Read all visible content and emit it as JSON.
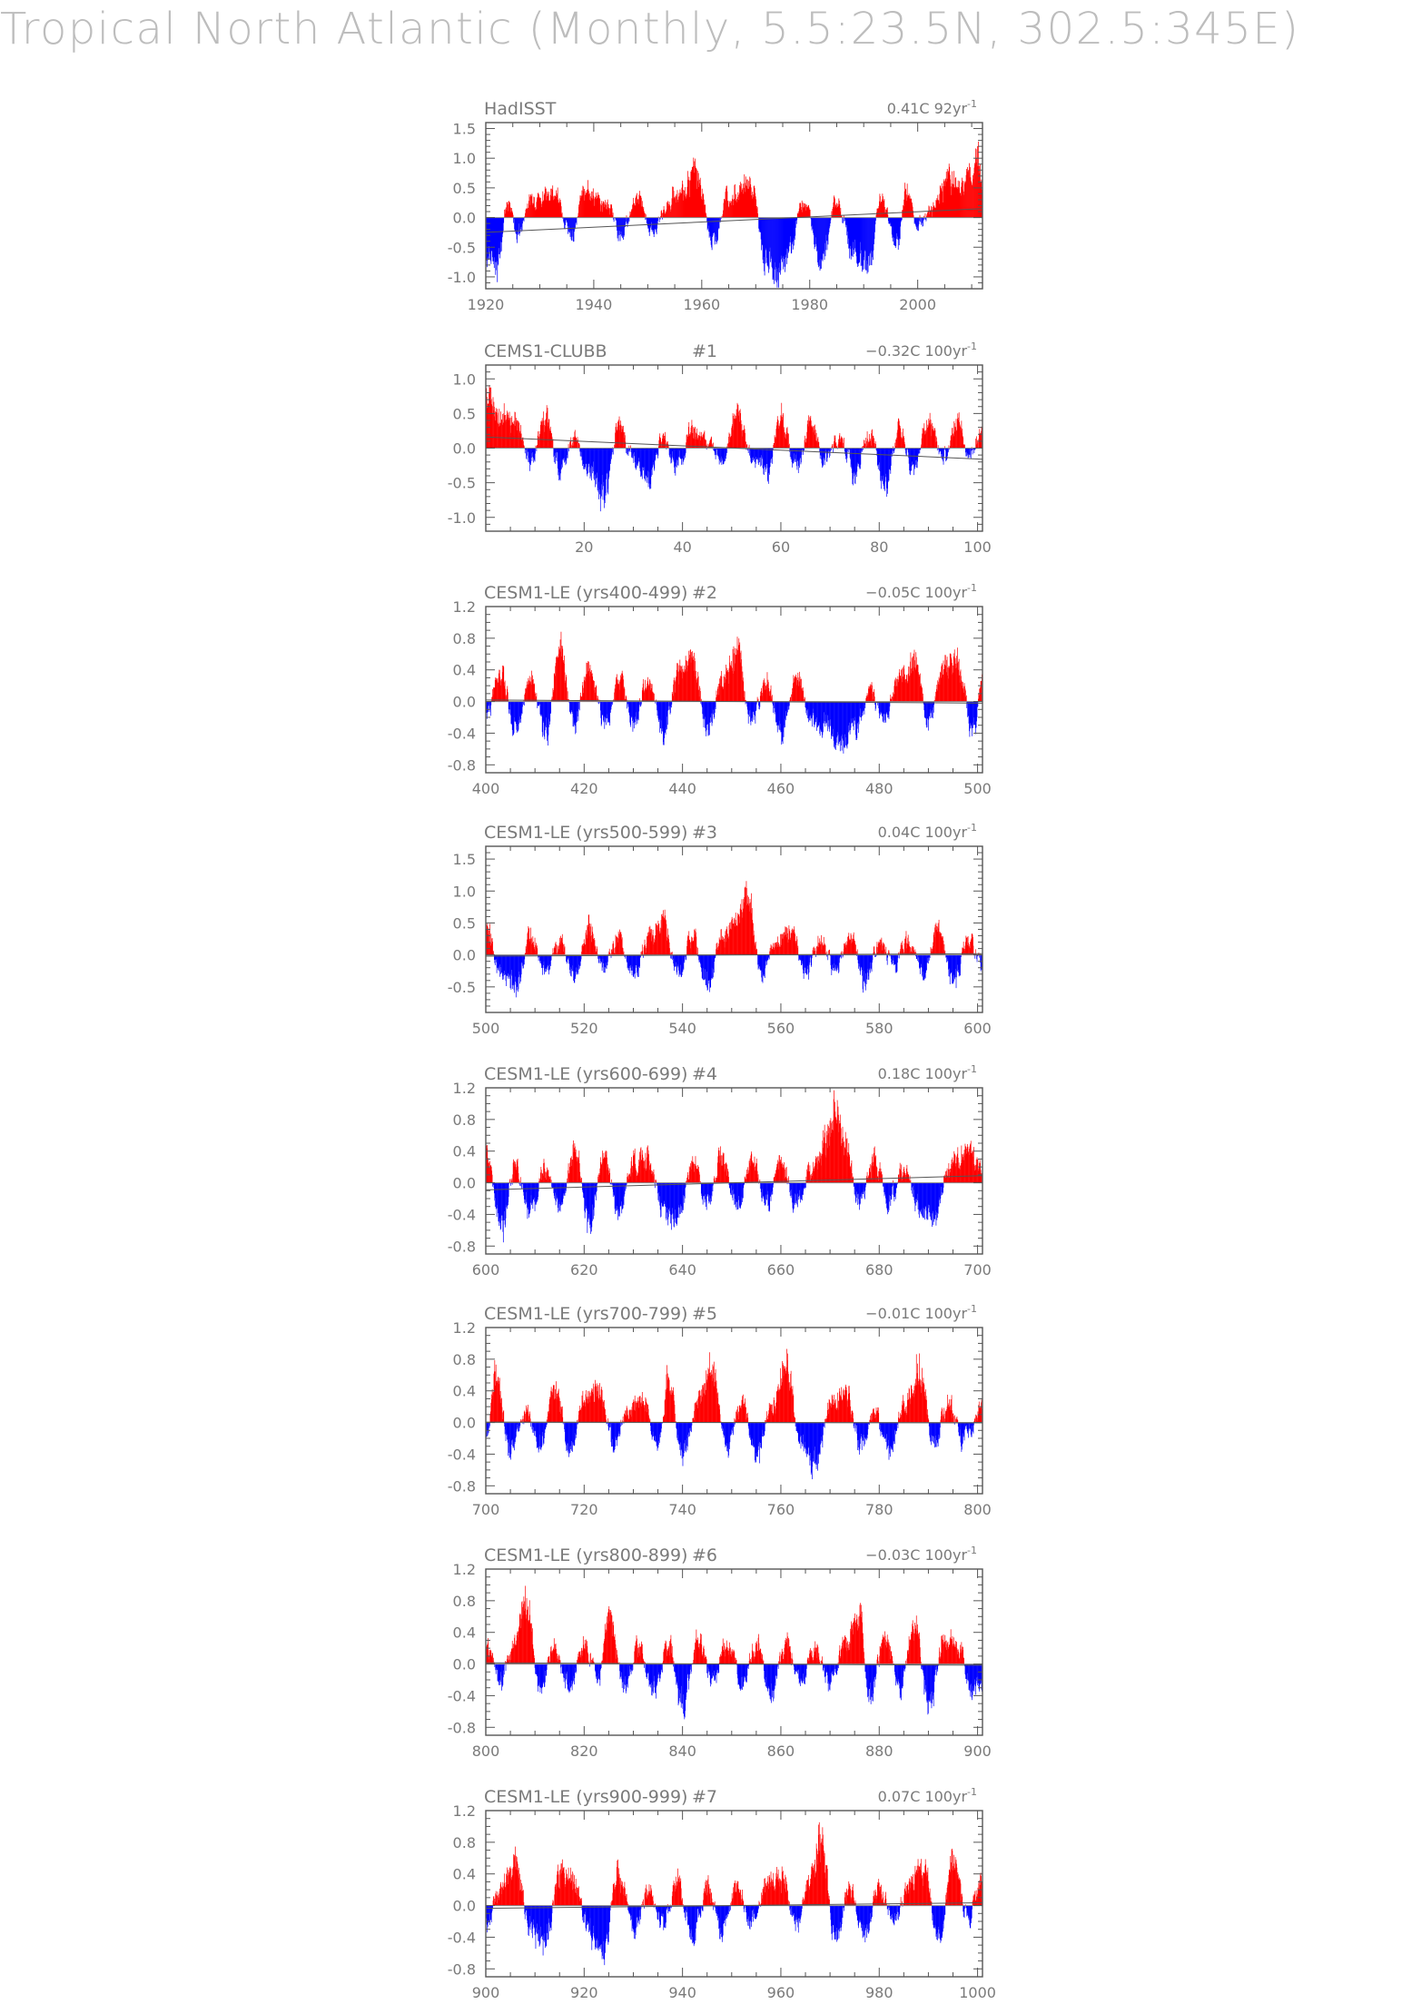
{
  "figure": {
    "title": "Tropical North Atlantic (Monthly, 5.5:23.5N, 302.5:345E)"
  },
  "colors": {
    "positive": "#ff0000",
    "negative": "#0000ff",
    "axis": "#555555",
    "text": "#7a7a7a"
  },
  "chart_data": [
    {
      "type": "bar",
      "title": "HadISST",
      "run": "",
      "trend": "0.41C 92yr",
      "trend_exp": "-1",
      "xlim": [
        1920,
        2012
      ],
      "ylim": [
        -1.2,
        1.6
      ],
      "xticks": [
        1920,
        1940,
        1960,
        1980,
        2000
      ],
      "xminor": 5,
      "yticks": [
        -1.0,
        -0.5,
        0.0,
        0.5,
        1.0,
        1.5
      ],
      "yminor": 0.1,
      "yfmt": 1,
      "trend_start": -0.25,
      "trend_end": 0.15,
      "anchors": [
        [
          0,
          -0.65
        ],
        [
          2,
          -0.85
        ],
        [
          4,
          0.25
        ],
        [
          6,
          -0.3
        ],
        [
          8,
          0.3
        ],
        [
          12,
          0.45
        ],
        [
          16,
          -0.3
        ],
        [
          18,
          0.5
        ],
        [
          22,
          0.3
        ],
        [
          25,
          -0.3
        ],
        [
          28,
          0.35
        ],
        [
          31,
          -0.25
        ],
        [
          35,
          0.35
        ],
        [
          39,
          0.85
        ],
        [
          42,
          -0.5
        ],
        [
          45,
          0.4
        ],
        [
          49,
          0.6
        ],
        [
          52,
          -0.8
        ],
        [
          54,
          -1.0
        ],
        [
          56,
          -0.6
        ],
        [
          59,
          0.3
        ],
        [
          62,
          -0.75
        ],
        [
          65,
          0.3
        ],
        [
          68,
          -0.6
        ],
        [
          71,
          -0.8
        ],
        [
          73,
          0.3
        ],
        [
          76,
          -0.45
        ],
        [
          78,
          0.5
        ],
        [
          80,
          -0.15
        ],
        [
          83,
          0.25
        ],
        [
          86,
          0.7
        ],
        [
          88,
          0.55
        ],
        [
          90,
          0.85
        ],
        [
          91,
          1.2
        ],
        [
          92,
          0.5
        ]
      ],
      "noise": 0.2
    },
    {
      "type": "bar",
      "title": "CEMS1-CLUBB",
      "run": "#1",
      "trend": "−0.32C 100yr",
      "trend_exp": "-1",
      "xlim": [
        0,
        101
      ],
      "ylim": [
        -1.2,
        1.2
      ],
      "xticks": [
        20,
        40,
        60,
        80,
        100
      ],
      "xminor": 5,
      "yticks": [
        -1.0,
        -0.5,
        0.0,
        0.5,
        1.0
      ],
      "yminor": 0.1,
      "yfmt": 1,
      "trend_start": 0.16,
      "trend_end": -0.16,
      "anchors": [
        [
          0,
          0.75
        ],
        [
          3,
          0.5
        ],
        [
          6,
          0.4
        ],
        [
          9,
          -0.2
        ],
        [
          12,
          0.45
        ],
        [
          15,
          -0.3
        ],
        [
          18,
          0.15
        ],
        [
          21,
          -0.35
        ],
        [
          24,
          -0.75
        ],
        [
          27,
          0.35
        ],
        [
          30,
          -0.2
        ],
        [
          33,
          -0.45
        ],
        [
          36,
          0.15
        ],
        [
          39,
          -0.3
        ],
        [
          42,
          0.3
        ],
        [
          45,
          0.05
        ],
        [
          48,
          -0.25
        ],
        [
          51,
          0.5
        ],
        [
          54,
          -0.1
        ],
        [
          57,
          -0.4
        ],
        [
          60,
          0.45
        ],
        [
          63,
          -0.3
        ],
        [
          66,
          0.35
        ],
        [
          69,
          -0.2
        ],
        [
          72,
          0.15
        ],
        [
          75,
          -0.4
        ],
        [
          78,
          0.25
        ],
        [
          81,
          -0.55
        ],
        [
          84,
          0.3
        ],
        [
          87,
          -0.3
        ],
        [
          90,
          0.45
        ],
        [
          93,
          -0.2
        ],
        [
          96,
          0.45
        ],
        [
          98,
          -0.1
        ],
        [
          101,
          0.3
        ]
      ],
      "noise": 0.2
    },
    {
      "type": "bar",
      "title": "CESM1-LE (yrs400-499)",
      "run": "#2",
      "trend": "−0.05C 100yr",
      "trend_exp": "-1",
      "xlim": [
        400,
        501
      ],
      "ylim": [
        -0.9,
        1.2
      ],
      "xticks": [
        400,
        420,
        440,
        460,
        480,
        500
      ],
      "xminor": 5,
      "yticks": [
        -0.8,
        -0.4,
        0.0,
        0.4,
        0.8,
        1.2
      ],
      "yminor": 0.1,
      "yfmt": 1,
      "trend_start": 0.02,
      "trend_end": -0.02,
      "anchors": [
        [
          0,
          -0.2
        ],
        [
          3,
          0.4
        ],
        [
          6,
          -0.35
        ],
        [
          9,
          0.25
        ],
        [
          12,
          -0.45
        ],
        [
          15,
          0.7
        ],
        [
          18,
          -0.3
        ],
        [
          21,
          0.5
        ],
        [
          24,
          -0.3
        ],
        [
          27,
          0.3
        ],
        [
          30,
          -0.25
        ],
        [
          33,
          0.25
        ],
        [
          36,
          -0.4
        ],
        [
          39,
          0.35
        ],
        [
          42,
          0.55
        ],
        [
          45,
          -0.35
        ],
        [
          48,
          0.25
        ],
        [
          51,
          0.7
        ],
        [
          54,
          -0.3
        ],
        [
          57,
          0.25
        ],
        [
          60,
          -0.45
        ],
        [
          63,
          0.35
        ],
        [
          66,
          -0.25
        ],
        [
          69,
          -0.35
        ],
        [
          72,
          -0.55
        ],
        [
          75,
          -0.35
        ],
        [
          78,
          0.1
        ],
        [
          81,
          -0.2
        ],
        [
          84,
          0.35
        ],
        [
          87,
          0.5
        ],
        [
          90,
          -0.25
        ],
        [
          93,
          0.45
        ],
        [
          96,
          0.5
        ],
        [
          99,
          -0.4
        ],
        [
          101,
          0.2
        ]
      ],
      "noise": 0.18
    },
    {
      "type": "bar",
      "title": "CESM1-LE (yrs500-599)",
      "run": "#3",
      "trend": "0.04C 100yr",
      "trend_exp": "-1",
      "xlim": [
        500,
        601
      ],
      "ylim": [
        -0.9,
        1.7
      ],
      "xticks": [
        500,
        520,
        540,
        560,
        580,
        600
      ],
      "xminor": 5,
      "yticks": [
        -0.5,
        0.0,
        0.5,
        1.0,
        1.5
      ],
      "yminor": 0.1,
      "yfmt": 1,
      "trend_start": -0.02,
      "trend_end": 0.02,
      "anchors": [
        [
          0,
          0.5
        ],
        [
          3,
          -0.3
        ],
        [
          6,
          -0.55
        ],
        [
          9,
          0.3
        ],
        [
          12,
          -0.3
        ],
        [
          15,
          0.2
        ],
        [
          18,
          -0.35
        ],
        [
          21,
          0.45
        ],
        [
          24,
          -0.25
        ],
        [
          27,
          0.3
        ],
        [
          30,
          -0.3
        ],
        [
          33,
          0.25
        ],
        [
          36,
          0.55
        ],
        [
          39,
          -0.35
        ],
        [
          42,
          0.3
        ],
        [
          45,
          -0.45
        ],
        [
          48,
          0.3
        ],
        [
          51,
          0.55
        ],
        [
          53,
          1.0
        ],
        [
          56,
          -0.3
        ],
        [
          59,
          0.25
        ],
        [
          62,
          0.4
        ],
        [
          65,
          -0.3
        ],
        [
          68,
          0.3
        ],
        [
          71,
          -0.25
        ],
        [
          74,
          0.35
        ],
        [
          77,
          -0.4
        ],
        [
          80,
          0.2
        ],
        [
          83,
          -0.2
        ],
        [
          86,
          0.25
        ],
        [
          89,
          -0.3
        ],
        [
          92,
          0.5
        ],
        [
          95,
          -0.45
        ],
        [
          98,
          0.25
        ],
        [
          101,
          -0.2
        ]
      ],
      "noise": 0.2
    },
    {
      "type": "bar",
      "title": "CESM1-LE (yrs600-699)",
      "run": "#4",
      "trend": "0.18C 100yr",
      "trend_exp": "-1",
      "xlim": [
        600,
        701
      ],
      "ylim": [
        -0.9,
        1.2
      ],
      "xticks": [
        600,
        620,
        640,
        660,
        680,
        700
      ],
      "xminor": 5,
      "yticks": [
        -0.8,
        -0.4,
        0.0,
        0.4,
        0.8,
        1.2
      ],
      "yminor": 0.1,
      "yfmt": 1,
      "trend_start": -0.09,
      "trend_end": 0.09,
      "anchors": [
        [
          0,
          0.4
        ],
        [
          3,
          -0.6
        ],
        [
          6,
          0.2
        ],
        [
          9,
          -0.35
        ],
        [
          12,
          0.2
        ],
        [
          15,
          -0.3
        ],
        [
          18,
          0.45
        ],
        [
          21,
          -0.55
        ],
        [
          24,
          0.3
        ],
        [
          27,
          -0.4
        ],
        [
          30,
          0.25
        ],
        [
          33,
          0.35
        ],
        [
          36,
          -0.4
        ],
        [
          39,
          -0.5
        ],
        [
          42,
          0.3
        ],
        [
          45,
          -0.25
        ],
        [
          48,
          0.35
        ],
        [
          51,
          -0.3
        ],
        [
          54,
          0.3
        ],
        [
          57,
          -0.25
        ],
        [
          60,
          0.25
        ],
        [
          63,
          -0.3
        ],
        [
          66,
          0.15
        ],
        [
          69,
          0.55
        ],
        [
          71,
          0.95
        ],
        [
          73,
          0.5
        ],
        [
          76,
          -0.35
        ],
        [
          79,
          0.3
        ],
        [
          82,
          -0.25
        ],
        [
          85,
          0.2
        ],
        [
          88,
          -0.35
        ],
        [
          91,
          -0.45
        ],
        [
          94,
          0.2
        ],
        [
          97,
          0.4
        ],
        [
          101,
          0.25
        ]
      ],
      "noise": 0.18
    },
    {
      "type": "bar",
      "title": "CESM1-LE (yrs700-799)",
      "run": "#5",
      "trend": "−0.01C 100yr",
      "trend_exp": "-1",
      "xlim": [
        700,
        801
      ],
      "ylim": [
        -0.9,
        1.2
      ],
      "xticks": [
        700,
        720,
        740,
        760,
        780,
        800
      ],
      "xminor": 5,
      "yticks": [
        -0.8,
        -0.4,
        0.0,
        0.4,
        0.8,
        1.2
      ],
      "yminor": 0.1,
      "yfmt": 1,
      "trend_start": 0.005,
      "trend_end": -0.005,
      "anchors": [
        [
          0,
          -0.2
        ],
        [
          2,
          0.6
        ],
        [
          5,
          -0.4
        ],
        [
          8,
          0.15
        ],
        [
          11,
          -0.3
        ],
        [
          14,
          0.45
        ],
        [
          17,
          -0.35
        ],
        [
          20,
          0.3
        ],
        [
          23,
          0.45
        ],
        [
          26,
          -0.3
        ],
        [
          29,
          0.15
        ],
        [
          32,
          0.3
        ],
        [
          35,
          -0.35
        ],
        [
          37,
          0.6
        ],
        [
          40,
          -0.45
        ],
        [
          43,
          0.2
        ],
        [
          46,
          0.75
        ],
        [
          49,
          -0.3
        ],
        [
          52,
          0.25
        ],
        [
          55,
          -0.4
        ],
        [
          58,
          0.2
        ],
        [
          61,
          0.8
        ],
        [
          64,
          -0.3
        ],
        [
          67,
          -0.55
        ],
        [
          70,
          0.25
        ],
        [
          73,
          0.45
        ],
        [
          76,
          -0.3
        ],
        [
          79,
          0.15
        ],
        [
          82,
          -0.35
        ],
        [
          85,
          0.2
        ],
        [
          88,
          0.7
        ],
        [
          91,
          -0.25
        ],
        [
          94,
          0.25
        ],
        [
          97,
          -0.2
        ],
        [
          101,
          0.2
        ]
      ],
      "noise": 0.18
    },
    {
      "type": "bar",
      "title": "CESM1-LE (yrs800-899)",
      "run": "#6",
      "trend": "−0.03C 100yr",
      "trend_exp": "-1",
      "xlim": [
        800,
        901
      ],
      "ylim": [
        -0.9,
        1.2
      ],
      "xticks": [
        800,
        820,
        840,
        860,
        880,
        900
      ],
      "xminor": 5,
      "yticks": [
        -0.8,
        -0.4,
        0.0,
        0.4,
        0.8,
        1.2
      ],
      "yminor": 0.1,
      "yfmt": 1,
      "trend_start": 0.015,
      "trend_end": -0.015,
      "anchors": [
        [
          0,
          0.2
        ],
        [
          3,
          -0.25
        ],
        [
          6,
          0.35
        ],
        [
          8,
          0.8
        ],
        [
          11,
          -0.3
        ],
        [
          14,
          0.2
        ],
        [
          17,
          -0.35
        ],
        [
          20,
          0.25
        ],
        [
          23,
          -0.2
        ],
        [
          25,
          0.65
        ],
        [
          28,
          -0.3
        ],
        [
          31,
          0.2
        ],
        [
          34,
          -0.35
        ],
        [
          37,
          0.25
        ],
        [
          40,
          -0.55
        ],
        [
          43,
          0.3
        ],
        [
          46,
          -0.25
        ],
        [
          49,
          0.25
        ],
        [
          52,
          -0.2
        ],
        [
          55,
          0.25
        ],
        [
          58,
          -0.4
        ],
        [
          61,
          0.3
        ],
        [
          64,
          -0.2
        ],
        [
          67,
          0.2
        ],
        [
          70,
          -0.25
        ],
        [
          73,
          0.25
        ],
        [
          76,
          0.6
        ],
        [
          78,
          -0.5
        ],
        [
          81,
          0.35
        ],
        [
          84,
          -0.3
        ],
        [
          87,
          0.5
        ],
        [
          90,
          -0.55
        ],
        [
          93,
          0.3
        ],
        [
          96,
          0.25
        ],
        [
          99,
          -0.35
        ],
        [
          101,
          -0.2
        ]
      ],
      "noise": 0.18
    },
    {
      "type": "bar",
      "title": "CESM1-LE (yrs900-999)",
      "run": "#7",
      "trend": "0.07C 100yr",
      "trend_exp": "-1",
      "xlim": [
        900,
        1001
      ],
      "ylim": [
        -0.9,
        1.2
      ],
      "xticks": [
        900,
        920,
        940,
        960,
        980,
        1000
      ],
      "xminor": 5,
      "yticks": [
        -0.8,
        -0.4,
        0.0,
        0.4,
        0.8,
        1.2
      ],
      "yminor": 0.1,
      "yfmt": 1,
      "trend_start": -0.035,
      "trend_end": 0.035,
      "anchors": [
        [
          0,
          -0.25
        ],
        [
          3,
          0.2
        ],
        [
          6,
          0.55
        ],
        [
          9,
          -0.3
        ],
        [
          12,
          -0.5
        ],
        [
          15,
          0.45
        ],
        [
          18,
          0.3
        ],
        [
          21,
          -0.35
        ],
        [
          24,
          -0.6
        ],
        [
          27,
          0.45
        ],
        [
          30,
          -0.3
        ],
        [
          33,
          0.2
        ],
        [
          36,
          -0.25
        ],
        [
          39,
          0.3
        ],
        [
          42,
          -0.45
        ],
        [
          45,
          0.25
        ],
        [
          48,
          -0.3
        ],
        [
          51,
          0.25
        ],
        [
          54,
          -0.25
        ],
        [
          57,
          0.3
        ],
        [
          60,
          0.4
        ],
        [
          63,
          -0.25
        ],
        [
          66,
          0.35
        ],
        [
          68,
          0.85
        ],
        [
          71,
          -0.4
        ],
        [
          74,
          0.2
        ],
        [
          77,
          -0.35
        ],
        [
          80,
          0.25
        ],
        [
          83,
          -0.2
        ],
        [
          86,
          0.3
        ],
        [
          89,
          0.55
        ],
        [
          92,
          -0.45
        ],
        [
          95,
          0.6
        ],
        [
          98,
          -0.2
        ],
        [
          101,
          0.4
        ]
      ],
      "noise": 0.18
    }
  ]
}
